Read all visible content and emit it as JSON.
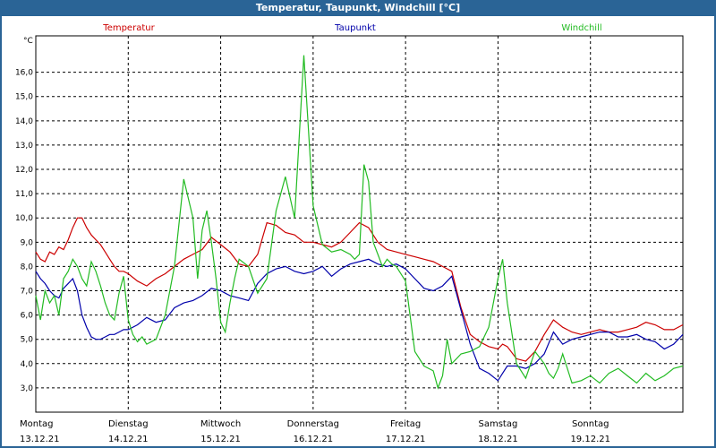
{
  "window": {
    "title": "Temperatur, Taupunkt, Windchill [°C]"
  },
  "chart_data": {
    "type": "line",
    "title": "Temperatur, Taupunkt, Windchill [°C]",
    "ylabel": "°C",
    "ylim": [
      2.0,
      17.5
    ],
    "xlim": [
      0,
      7
    ],
    "grid": true,
    "yticks": [
      3.0,
      4.0,
      5.0,
      6.0,
      7.0,
      8.0,
      9.0,
      10.0,
      11.0,
      12.0,
      13.0,
      14.0,
      15.0,
      16.0
    ],
    "ytick_labels": [
      "3,0",
      "4,0",
      "5,0",
      "6,0",
      "7,0",
      "8,0",
      "9,0",
      "10,0",
      "11,0",
      "12,0",
      "13,0",
      "14,0",
      "15,0",
      "16,0"
    ],
    "days": [
      {
        "weekday": "Montag",
        "date": "13.12.21"
      },
      {
        "weekday": "Dienstag",
        "date": "14.12.21"
      },
      {
        "weekday": "Mittwoch",
        "date": "15.12.21"
      },
      {
        "weekday": "Donnerstag",
        "date": "16.12.21"
      },
      {
        "weekday": "Freitag",
        "date": "17.12.21"
      },
      {
        "weekday": "Samstag",
        "date": "18.12.21"
      },
      {
        "weekday": "Sonntag",
        "date": "19.12.21"
      }
    ],
    "series": [
      {
        "name": "Temperatur",
        "color": "#cc0000",
        "x": [
          0,
          0.05,
          0.1,
          0.15,
          0.2,
          0.25,
          0.3,
          0.35,
          0.4,
          0.45,
          0.5,
          0.55,
          0.6,
          0.65,
          0.7,
          0.75,
          0.8,
          0.85,
          0.9,
          0.95,
          1,
          1.1,
          1.2,
          1.3,
          1.4,
          1.5,
          1.6,
          1.7,
          1.8,
          1.9,
          2,
          2.1,
          2.2,
          2.3,
          2.4,
          2.5,
          2.6,
          2.7,
          2.8,
          2.9,
          3,
          3.1,
          3.2,
          3.3,
          3.4,
          3.5,
          3.6,
          3.7,
          3.8,
          3.9,
          4,
          4.1,
          4.2,
          4.3,
          4.4,
          4.5,
          4.6,
          4.7,
          4.8,
          4.9,
          5,
          5.05,
          5.1,
          5.2,
          5.3,
          5.4,
          5.5,
          5.6,
          5.7,
          5.8,
          5.9,
          6,
          6.1,
          6.2,
          6.3,
          6.4,
          6.5,
          6.6,
          6.7,
          6.8,
          6.9,
          7
        ],
        "y": [
          8.6,
          8.3,
          8.2,
          8.6,
          8.5,
          8.8,
          8.7,
          9.1,
          9.6,
          10.0,
          10.0,
          9.6,
          9.3,
          9.1,
          8.9,
          8.6,
          8.3,
          8.0,
          7.8,
          7.8,
          7.7,
          7.4,
          7.2,
          7.5,
          7.7,
          8.0,
          8.3,
          8.5,
          8.7,
          9.2,
          8.9,
          8.6,
          8.1,
          8.0,
          8.5,
          9.8,
          9.7,
          9.4,
          9.3,
          9.0,
          9.0,
          8.9,
          8.8,
          9.0,
          9.4,
          9.8,
          9.6,
          9.0,
          8.7,
          8.6,
          8.5,
          8.4,
          8.3,
          8.2,
          8.0,
          7.8,
          6.3,
          5.2,
          4.9,
          4.7,
          4.6,
          4.8,
          4.7,
          4.2,
          4.1,
          4.5,
          5.2,
          5.8,
          5.5,
          5.3,
          5.2,
          5.3,
          5.4,
          5.3,
          5.3,
          5.4,
          5.5,
          5.7,
          5.6,
          5.4,
          5.4,
          5.6
        ]
      },
      {
        "name": "Taupunkt",
        "color": "#0000aa",
        "x": [
          0,
          0.05,
          0.1,
          0.15,
          0.2,
          0.25,
          0.3,
          0.35,
          0.4,
          0.45,
          0.5,
          0.55,
          0.6,
          0.65,
          0.7,
          0.75,
          0.8,
          0.85,
          0.9,
          0.95,
          1,
          1.1,
          1.2,
          1.3,
          1.4,
          1.5,
          1.6,
          1.7,
          1.8,
          1.9,
          2,
          2.1,
          2.2,
          2.3,
          2.4,
          2.5,
          2.6,
          2.7,
          2.8,
          2.9,
          3,
          3.1,
          3.2,
          3.3,
          3.4,
          3.5,
          3.6,
          3.7,
          3.8,
          3.9,
          4,
          4.1,
          4.2,
          4.3,
          4.4,
          4.5,
          4.6,
          4.7,
          4.8,
          4.9,
          5,
          5.05,
          5.1,
          5.2,
          5.3,
          5.4,
          5.5,
          5.6,
          5.7,
          5.8,
          5.9,
          6,
          6.1,
          6.2,
          6.3,
          6.4,
          6.5,
          6.6,
          6.7,
          6.8,
          6.9,
          7
        ],
        "y": [
          7.8,
          7.5,
          7.3,
          7.0,
          6.8,
          6.7,
          7.1,
          7.3,
          7.5,
          7.0,
          6.0,
          5.5,
          5.1,
          5.0,
          5.0,
          5.1,
          5.2,
          5.2,
          5.3,
          5.4,
          5.4,
          5.6,
          5.9,
          5.7,
          5.8,
          6.3,
          6.5,
          6.6,
          6.8,
          7.1,
          7.0,
          6.8,
          6.7,
          6.6,
          7.3,
          7.7,
          7.9,
          8.0,
          7.8,
          7.7,
          7.8,
          8.0,
          7.6,
          7.9,
          8.1,
          8.2,
          8.3,
          8.1,
          8.0,
          8.1,
          7.9,
          7.5,
          7.1,
          7.0,
          7.2,
          7.6,
          6.2,
          4.8,
          3.8,
          3.6,
          3.3,
          3.6,
          3.9,
          3.9,
          3.8,
          4.0,
          4.4,
          5.3,
          4.8,
          5.0,
          5.1,
          5.2,
          5.3,
          5.3,
          5.1,
          5.1,
          5.2,
          5.0,
          4.9,
          4.6,
          4.8,
          5.2
        ]
      },
      {
        "name": "Windchill",
        "color": "#22bb22",
        "x": [
          0,
          0.05,
          0.1,
          0.15,
          0.2,
          0.25,
          0.3,
          0.35,
          0.4,
          0.45,
          0.5,
          0.55,
          0.6,
          0.65,
          0.7,
          0.75,
          0.8,
          0.85,
          0.9,
          0.95,
          1,
          1.05,
          1.1,
          1.15,
          1.2,
          1.3,
          1.4,
          1.5,
          1.6,
          1.7,
          1.75,
          1.8,
          1.85,
          1.9,
          1.95,
          2,
          2.05,
          2.1,
          2.15,
          2.2,
          2.3,
          2.4,
          2.5,
          2.6,
          2.7,
          2.8,
          2.9,
          3,
          3.1,
          3.2,
          3.3,
          3.4,
          3.45,
          3.5,
          3.55,
          3.6,
          3.65,
          3.7,
          3.75,
          3.8,
          3.85,
          3.9,
          4,
          4.1,
          4.2,
          4.3,
          4.35,
          4.4,
          4.45,
          4.5,
          4.6,
          4.7,
          4.8,
          4.9,
          5,
          5.05,
          5.1,
          5.2,
          5.3,
          5.4,
          5.5,
          5.55,
          5.6,
          5.65,
          5.7,
          5.8,
          5.9,
          6,
          6.1,
          6.2,
          6.3,
          6.4,
          6.5,
          6.6,
          6.7,
          6.8,
          6.9,
          7
        ],
        "y": [
          6.8,
          5.8,
          7.0,
          6.5,
          6.8,
          6.0,
          7.5,
          7.8,
          8.3,
          8.0,
          7.5,
          7.2,
          8.2,
          7.8,
          7.2,
          6.5,
          6.0,
          5.8,
          6.9,
          7.6,
          5.8,
          5.2,
          4.9,
          5.1,
          4.8,
          5.0,
          6.0,
          8.0,
          11.6,
          10.0,
          7.5,
          9.5,
          10.3,
          9.0,
          7.5,
          5.7,
          5.3,
          6.5,
          7.5,
          8.3,
          8.0,
          6.9,
          7.5,
          10.3,
          11.7,
          10.0,
          16.7,
          10.5,
          8.9,
          8.6,
          8.7,
          8.5,
          8.3,
          8.5,
          12.2,
          11.5,
          9.0,
          8.5,
          8.0,
          8.3,
          8.1,
          8.0,
          7.4,
          4.5,
          3.9,
          3.7,
          3.0,
          3.5,
          5.0,
          4.0,
          4.4,
          4.5,
          4.7,
          5.5,
          7.5,
          8.3,
          6.5,
          4.0,
          3.4,
          4.5,
          4.0,
          3.6,
          3.4,
          3.8,
          4.4,
          3.2,
          3.3,
          3.5,
          3.2,
          3.6,
          3.8,
          3.5,
          3.2,
          3.6,
          3.3,
          3.5,
          3.8,
          3.9
        ]
      }
    ]
  }
}
